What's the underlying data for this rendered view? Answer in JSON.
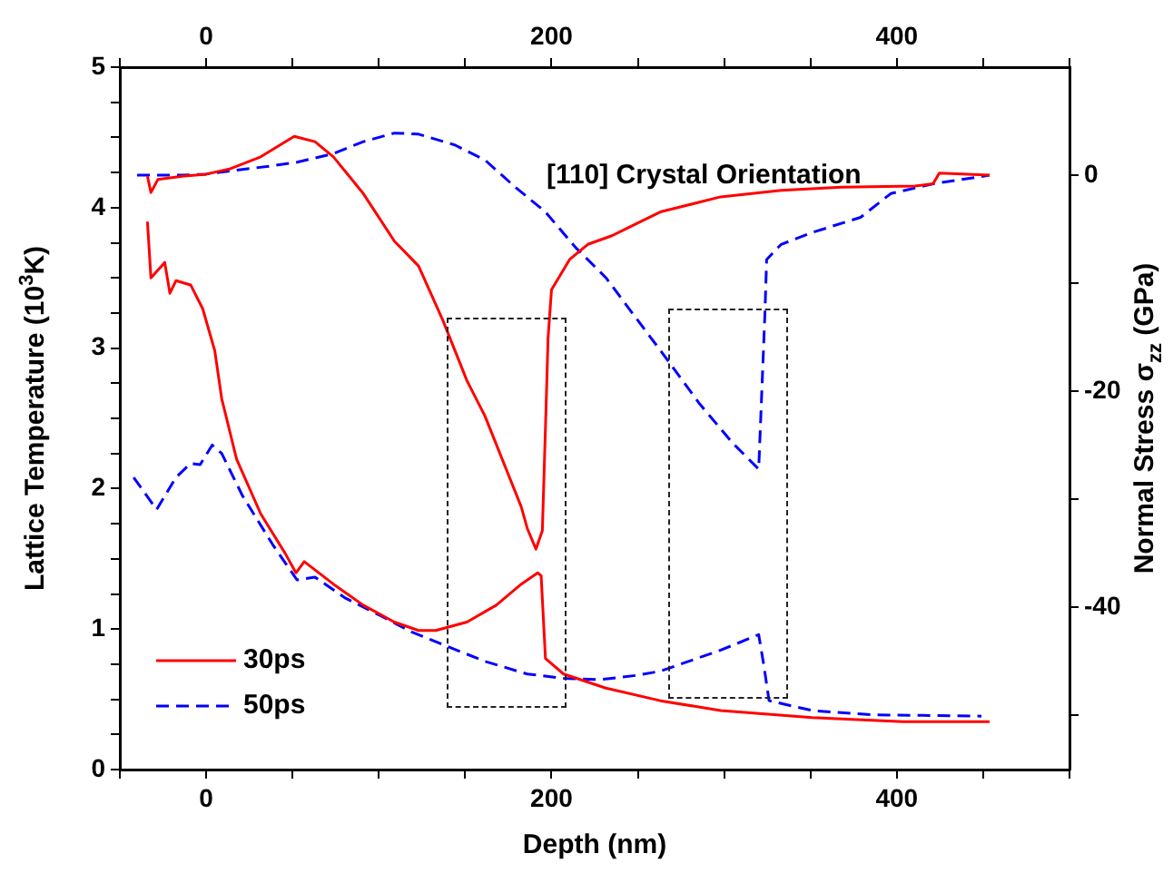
{
  "chart_data": {
    "type": "line",
    "title": "[110] Crystal Orientation",
    "xlabel": "Depth (nm)",
    "ylabel": "Lattice Temperature (10$^{3}$K)",
    "y2label": "Normal Stress σ$_{zz}$ (GPa)",
    "xlim": [
      -50,
      500
    ],
    "xticks": [
      {
        "value": -50,
        "label": null
      },
      0,
      {
        "value": 50,
        "label": null
      },
      {
        "value": 100,
        "label": null
      },
      {
        "value": 150,
        "label": null
      },
      200,
      {
        "value": 250,
        "label": null
      },
      {
        "value": 300,
        "label": null
      },
      {
        "value": 350,
        "label": null
      },
      400,
      {
        "value": 450,
        "label": null
      },
      {
        "value": 500,
        "label": null
      }
    ],
    "x2lim": [
      -50,
      500
    ],
    "x2ticks": [
      {
        "value": -50,
        "label": null
      },
      0,
      {
        "value": 50,
        "label": null
      },
      {
        "value": 100,
        "label": null
      },
      {
        "value": 150,
        "label": null
      },
      200,
      {
        "value": 250,
        "label": null
      },
      {
        "value": 300,
        "label": null
      },
      {
        "value": 350,
        "label": null
      },
      400,
      {
        "value": 450,
        "label": null
      },
      {
        "value": 500,
        "label": null
      }
    ],
    "ylim": [
      0,
      5
    ],
    "yticks": [
      0,
      {
        "value": 0.25,
        "label": null
      },
      {
        "value": 0.5,
        "label": null
      },
      {
        "value": 0.75,
        "label": null
      },
      1,
      {
        "value": 1.25,
        "label": null
      },
      {
        "value": 1.5,
        "label": null
      },
      {
        "value": 1.75,
        "label": null
      },
      2,
      {
        "value": 2.25,
        "label": null
      },
      {
        "value": 2.5,
        "label": null
      },
      {
        "value": 2.75,
        "label": null
      },
      3,
      {
        "value": 3.25,
        "label": null
      },
      {
        "value": 3.5,
        "label": null
      },
      {
        "value": 3.75,
        "label": null
      },
      4,
      {
        "value": 4.25,
        "label": null
      },
      {
        "value": 4.5,
        "label": null
      },
      {
        "value": 4.75,
        "label": null
      },
      5
    ],
    "y2lim": [
      -55,
      10
    ],
    "y2ticks": [
      {
        "value": -50,
        "label": null
      },
      -40,
      {
        "value": -30,
        "label": null
      },
      -20,
      {
        "value": -10,
        "label": null
      },
      0
    ],
    "legend": "bottom left",
    "series": [
      {
        "name": "30ps",
        "color": "#ff0000",
        "line_style": "solid",
        "x": [
          -34,
          -32,
          -24,
          -21,
          -17.5,
          -9,
          -2,
          5,
          9,
          17.6,
          31.6,
          45.7,
          52,
          56.8,
          73.7,
          91,
          109,
          123,
          133,
          151,
          168,
          182.5,
          192,
          194,
          196.5,
          207,
          231.5,
          263,
          298,
          351,
          403.6,
          453.7
        ],
        "values": [
          3.9,
          3.5,
          3.61,
          3.39,
          3.48,
          3.45,
          3.28,
          2.98,
          2.64,
          2.21,
          1.82,
          1.54,
          1.4,
          1.48,
          1.32,
          1.17,
          1.05,
          0.99,
          0.99,
          1.05,
          1.17,
          1.32,
          1.4,
          1.38,
          0.79,
          0.68,
          0.58,
          0.49,
          0.42,
          0.37,
          0.34,
          0.34
        ]
      },
      {
        "name": "50ps",
        "color": "#0000ff",
        "line_style": "dashed",
        "x": [
          -42,
          -28.7,
          -17.5,
          -9,
          -3.5,
          3.5,
          9,
          21,
          38.6,
          52.6,
          63,
          80.7,
          101.8,
          119,
          137,
          161.5,
          186,
          207,
          228,
          249,
          263,
          298,
          320,
          323,
          326,
          351,
          386,
          449
        ],
        "values": [
          2.08,
          1.85,
          2.08,
          2.18,
          2.17,
          2.31,
          2.25,
          1.95,
          1.6,
          1.35,
          1.37,
          1.22,
          1.09,
          0.98,
          0.89,
          0.77,
          0.68,
          0.65,
          0.64,
          0.67,
          0.7,
          0.85,
          0.96,
          0.74,
          0.49,
          0.42,
          0.39,
          0.38
        ]
      },
      {
        "color": "#ff0000",
        "line_style": "solid",
        "axis": "y2",
        "x": [
          -34,
          -32,
          -28,
          -14,
          0,
          14,
          31.6,
          51,
          63,
          73.7,
          91,
          109,
          123,
          137,
          151,
          161.5,
          175.5,
          182.5,
          186,
          191,
          194.7,
          197,
          198,
          200,
          210.5,
          221,
          235,
          249,
          263,
          298,
          333,
          368,
          410.5,
          421,
          424.6,
          453.7
        ],
        "values": [
          -0.1,
          -1.6,
          -0.4,
          -0.1,
          0.1,
          0.6,
          1.7,
          3.6,
          3.1,
          1.7,
          -1.7,
          -6.1,
          -8.4,
          -13.4,
          -19,
          -22.3,
          -27.9,
          -30.7,
          -32.7,
          -34.6,
          -32.9,
          -20.7,
          -15.1,
          -10.6,
          -7.8,
          -6.4,
          -5.6,
          -4.5,
          -3.4,
          -2,
          -1.4,
          -1.1,
          -1,
          -0.8,
          0.2,
          0
        ]
      },
      {
        "color": "#0000ff",
        "line_style": "dashed",
        "axis": "y2",
        "x": [
          -40,
          -14,
          0,
          14,
          35,
          52.6,
          73.7,
          91,
          109,
          123,
          144,
          161.5,
          179,
          196.5,
          214,
          231.6,
          247,
          263,
          286,
          305,
          320,
          323.6,
          324.6,
          333,
          351,
          379,
          396.5,
          421,
          453.7
        ],
        "values": [
          0,
          0,
          0.1,
          0.4,
          0.8,
          1.2,
          2,
          3.1,
          3.9,
          3.8,
          2.8,
          1.4,
          -1.1,
          -3.4,
          -6.7,
          -9.5,
          -12.8,
          -16.2,
          -21.2,
          -24.8,
          -27.2,
          -12.8,
          -7.8,
          -6.4,
          -5.3,
          -3.9,
          -1.7,
          -0.8,
          0
        ]
      }
    ]
  }
}
